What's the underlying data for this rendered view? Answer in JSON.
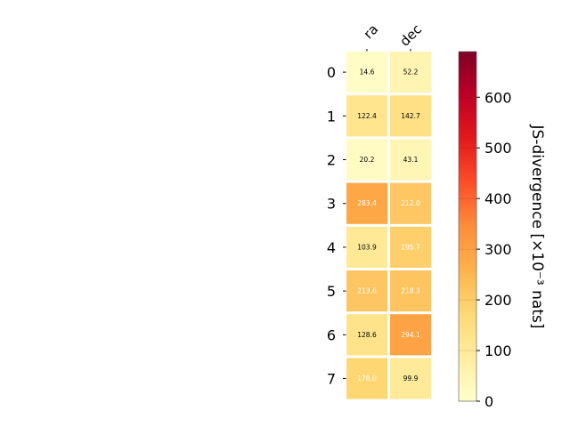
{
  "chart_data": {
    "type": "heatmap",
    "columns": [
      "ra",
      "dec"
    ],
    "rows": [
      "0",
      "1",
      "2",
      "3",
      "4",
      "5",
      "6",
      "7"
    ],
    "values": [
      [
        14.6,
        52.2
      ],
      [
        122.4,
        142.7
      ],
      [
        20.2,
        43.1
      ],
      [
        283.4,
        212.0
      ],
      [
        103.9,
        195.7
      ],
      [
        213.6,
        218.3
      ],
      [
        128.6,
        294.1
      ],
      [
        178.0,
        99.9
      ]
    ],
    "cell_labels": [
      [
        "14.6",
        "52.2"
      ],
      [
        "122.4",
        "142.7"
      ],
      [
        "20.2",
        "43.1"
      ],
      [
        "283.4",
        "212.0"
      ],
      [
        "103.9",
        "195.7"
      ],
      [
        "213.6",
        "218.3"
      ],
      [
        "128.6",
        "294.1"
      ],
      [
        "178.0",
        "99.9"
      ]
    ],
    "colorbar": {
      "label": "JS-divergence [×10⁻³ nats]",
      "range": [
        0,
        690
      ],
      "ticks": [
        0,
        100,
        200,
        300,
        400,
        500,
        600
      ],
      "tick_labels": [
        "0",
        "100",
        "200",
        "300",
        "400",
        "500",
        "600"
      ],
      "colormap": "YlOrRd"
    },
    "label_text_colors": {
      "dark": "#000000",
      "light": "#ffffff"
    }
  }
}
